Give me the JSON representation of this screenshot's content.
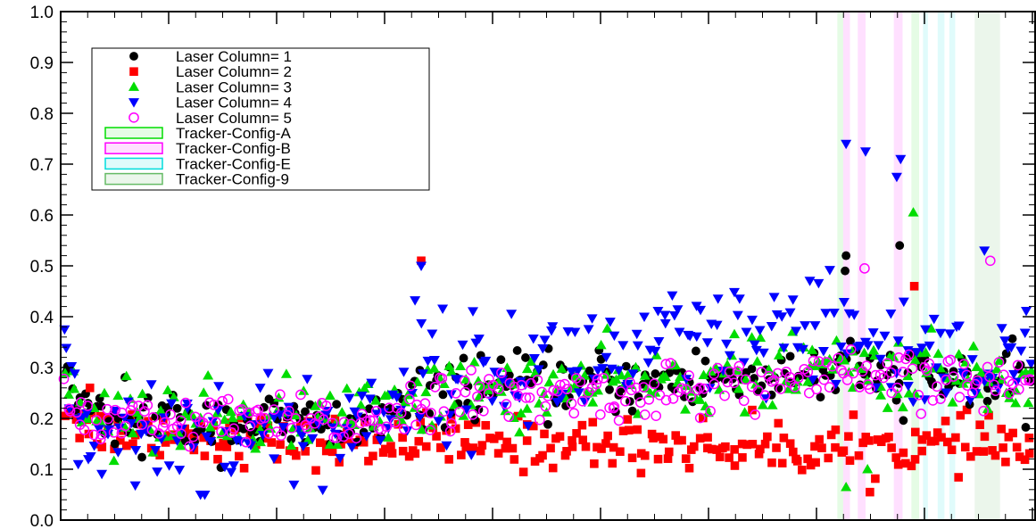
{
  "chart_data": {
    "type": "scatter",
    "title": "",
    "xlabel": "",
    "ylabel": "",
    "ylim": [
      0.0,
      1.0
    ],
    "yticks": [
      "0.0",
      "0.1",
      "0.2",
      "0.3",
      "0.4",
      "0.5",
      "0.6",
      "0.7",
      "0.8",
      "0.9",
      "1.0"
    ],
    "x_tick_labels": "none",
    "grid": false,
    "legend_position": "top-left",
    "legend": [
      {
        "label": "Laser Column= 1",
        "marker": "circle",
        "color": "#000000"
      },
      {
        "label": "Laser Column= 2",
        "marker": "square",
        "color": "#ff0000"
      },
      {
        "label": "Laser Column= 3",
        "marker": "triangle-up",
        "color": "#00dd00"
      },
      {
        "label": "Laser Column= 4",
        "marker": "triangle-down",
        "color": "#0000ff"
      },
      {
        "label": "Laser Column= 5",
        "marker": "open-circle",
        "color": "#ff00ff"
      },
      {
        "label": "Tracker-Config-A",
        "marker": "box",
        "color": "#00dd00"
      },
      {
        "label": "Tracker-Config-B",
        "marker": "box",
        "color": "#ff00ff"
      },
      {
        "label": "Tracker-Config-E",
        "marker": "box",
        "color": "#00dddd"
      },
      {
        "label": "Tracker-Config-9",
        "marker": "box",
        "color": "#66bb66"
      }
    ],
    "series_trends": [
      {
        "name": "Laser Column= 1",
        "knots": [
          [
            0,
            0.29
          ],
          [
            0.03,
            0.2
          ],
          [
            0.3,
            0.18
          ],
          [
            0.37,
            0.23
          ],
          [
            0.4,
            0.26
          ],
          [
            0.6,
            0.27
          ],
          [
            0.8,
            0.29
          ],
          [
            0.95,
            0.27
          ],
          [
            1,
            0.26
          ]
        ],
        "spread": 0.03
      },
      {
        "name": "Laser Column= 2",
        "knots": [
          [
            0,
            0.24
          ],
          [
            0.03,
            0.18
          ],
          [
            0.3,
            0.15
          ],
          [
            0.37,
            0.16
          ],
          [
            0.4,
            0.15
          ],
          [
            0.6,
            0.15
          ],
          [
            0.8,
            0.14
          ],
          [
            0.95,
            0.15
          ],
          [
            1,
            0.14
          ]
        ],
        "spread": 0.025
      },
      {
        "name": "Laser Column= 3",
        "knots": [
          [
            0,
            0.3
          ],
          [
            0.03,
            0.2
          ],
          [
            0.3,
            0.2
          ],
          [
            0.37,
            0.25
          ],
          [
            0.4,
            0.25
          ],
          [
            0.6,
            0.27
          ],
          [
            0.8,
            0.3
          ],
          [
            0.95,
            0.28
          ],
          [
            1,
            0.27
          ]
        ],
        "spread": 0.035
      },
      {
        "name": "Laser Column= 4",
        "knots": [
          [
            0,
            0.31
          ],
          [
            0.03,
            0.17
          ],
          [
            0.3,
            0.18
          ],
          [
            0.37,
            0.3
          ],
          [
            0.4,
            0.28
          ],
          [
            0.6,
            0.33
          ],
          [
            0.8,
            0.36
          ],
          [
            0.95,
            0.3
          ],
          [
            1,
            0.28
          ]
        ],
        "spread": 0.06
      },
      {
        "name": "Laser Column= 5",
        "knots": [
          [
            0,
            0.3
          ],
          [
            0.03,
            0.19
          ],
          [
            0.3,
            0.19
          ],
          [
            0.37,
            0.23
          ],
          [
            0.4,
            0.24
          ],
          [
            0.6,
            0.25
          ],
          [
            0.8,
            0.28
          ],
          [
            0.95,
            0.27
          ],
          [
            1,
            0.27
          ]
        ],
        "spread": 0.025
      }
    ],
    "highlight_points": [
      {
        "series": "Laser Column= 2",
        "x": 0.37,
        "y": 0.51
      },
      {
        "series": "Laser Column= 4",
        "x": 0.37,
        "y": 0.5
      },
      {
        "series": "Laser Column= 4",
        "x": 0.806,
        "y": 0.74
      },
      {
        "series": "Laser Column= 4",
        "x": 0.826,
        "y": 0.725
      },
      {
        "series": "Laser Column= 4",
        "x": 0.862,
        "y": 0.71
      },
      {
        "series": "Laser Column= 4",
        "x": 0.858,
        "y": 0.675
      },
      {
        "series": "Laser Column= 3",
        "x": 0.875,
        "y": 0.605
      },
      {
        "series": "Laser Column= 1",
        "x": 0.861,
        "y": 0.54
      },
      {
        "series": "Laser Column= 1",
        "x": 0.806,
        "y": 0.52
      },
      {
        "series": "Laser Column= 1",
        "x": 0.805,
        "y": 0.49
      },
      {
        "series": "Laser Column= 5",
        "x": 0.825,
        "y": 0.495
      },
      {
        "series": "Laser Column= 5",
        "x": 0.954,
        "y": 0.51
      },
      {
        "series": "Laser Column= 4",
        "x": 0.948,
        "y": 0.53
      },
      {
        "series": "Laser Column= 2",
        "x": 0.876,
        "y": 0.46
      },
      {
        "series": "Laser Column= 3",
        "x": 0.806,
        "y": 0.065
      },
      {
        "series": "Laser Column= 3",
        "x": 0.828,
        "y": 0.1
      },
      {
        "series": "Laser Column= 2",
        "x": 0.03,
        "y": 0.26
      },
      {
        "series": "Laser Column= 4",
        "x": 0.004,
        "y": 0.375
      },
      {
        "series": "Laser Column= 4",
        "x": 0.018,
        "y": 0.11
      }
    ],
    "config_bands": [
      {
        "name": "Tracker-Config-A",
        "x": [
          0.797,
          0.803
        ]
      },
      {
        "name": "Tracker-Config-B",
        "x": [
          0.803,
          0.81
        ]
      },
      {
        "name": "Tracker-Config-B",
        "x": [
          0.818,
          0.826
        ]
      },
      {
        "name": "Tracker-Config-B",
        "x": [
          0.855,
          0.864
        ]
      },
      {
        "name": "Tracker-Config-A",
        "x": [
          0.873,
          0.881
        ]
      },
      {
        "name": "Tracker-Config-E",
        "x": [
          0.885,
          0.89
        ]
      },
      {
        "name": "Tracker-Config-E",
        "x": [
          0.9,
          0.907
        ]
      },
      {
        "name": "Tracker-Config-E",
        "x": [
          0.912,
          0.918
        ]
      },
      {
        "name": "Tracker-Config-9",
        "x": [
          0.938,
          0.964
        ]
      }
    ]
  }
}
